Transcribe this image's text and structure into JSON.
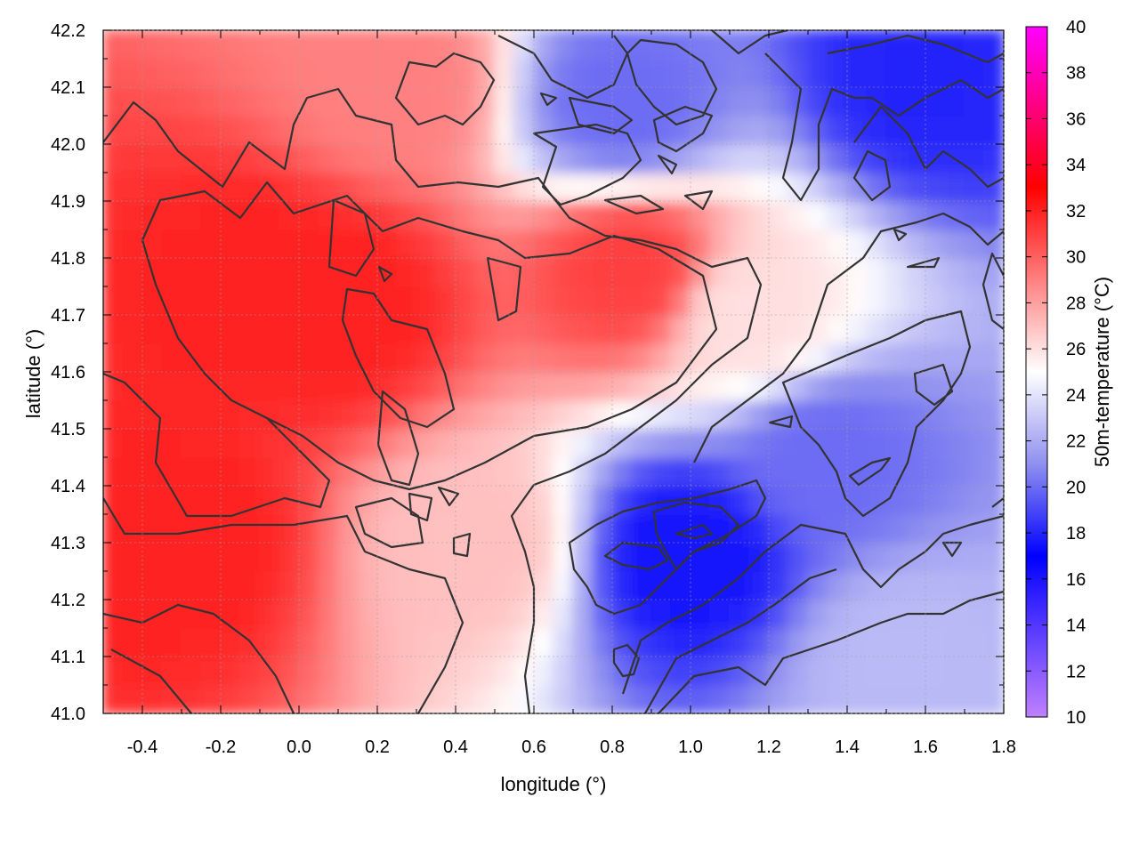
{
  "chart_data": {
    "type": "heatmap",
    "title": "",
    "xlabel": "longitude (°)",
    "ylabel": "latitude (°)",
    "colorbar_label": "50m-temperature (°C)",
    "xlim": [
      -0.5,
      1.8
    ],
    "ylim": [
      41.0,
      42.2
    ],
    "x_ticks": [
      "-0.4",
      "-0.2",
      "0.0",
      "0.2",
      "0.4",
      "0.6",
      "0.8",
      "1.0",
      "1.2",
      "1.4",
      "1.6",
      "1.8"
    ],
    "x_tick_values": [
      -0.4,
      -0.2,
      0.0,
      0.2,
      0.4,
      0.6,
      0.8,
      1.0,
      1.2,
      1.4,
      1.6,
      1.8
    ],
    "y_ticks": [
      "41.0",
      "41.1",
      "41.2",
      "41.3",
      "41.4",
      "41.5",
      "41.6",
      "41.7",
      "41.8",
      "41.9",
      "42.0",
      "42.1",
      "42.2"
    ],
    "y_tick_values": [
      41.0,
      41.1,
      41.2,
      41.3,
      41.4,
      41.5,
      41.6,
      41.7,
      41.8,
      41.9,
      42.0,
      42.1,
      42.2
    ],
    "colorbar_range": [
      10,
      40
    ],
    "colorbar_ticks": [
      "10",
      "12",
      "14",
      "16",
      "18",
      "20",
      "22",
      "24",
      "26",
      "28",
      "30",
      "32",
      "34",
      "36",
      "38",
      "40"
    ],
    "colorbar_tick_values": [
      10,
      12,
      14,
      16,
      18,
      20,
      22,
      24,
      26,
      28,
      30,
      32,
      34,
      36,
      38,
      40
    ],
    "colormap": [
      {
        "value": 10,
        "color": "#c080ff"
      },
      {
        "value": 17,
        "color": "#0000ff"
      },
      {
        "value": 21,
        "color": "#9090f0"
      },
      {
        "value": 25,
        "color": "#ffffff"
      },
      {
        "value": 29,
        "color": "#ff8080"
      },
      {
        "value": 33,
        "color": "#ff0000"
      },
      {
        "value": 40,
        "color": "#ff00ff"
      }
    ],
    "grid": true,
    "contours": true,
    "approx_field_samples": [
      {
        "lon": -0.3,
        "lat": 41.3,
        "temp": 32
      },
      {
        "lon": -0.1,
        "lat": 41.75,
        "temp": 32
      },
      {
        "lon": 0.1,
        "lat": 41.72,
        "temp": 32
      },
      {
        "lon": 0.85,
        "lat": 41.78,
        "temp": 31
      },
      {
        "lon": 0.25,
        "lat": 42.1,
        "temp": 29
      },
      {
        "lon": 0.45,
        "lat": 41.3,
        "temp": 27
      },
      {
        "lon": 1.15,
        "lat": 41.7,
        "temp": 26
      },
      {
        "lon": 1.0,
        "lat": 41.28,
        "temp": 17.5
      },
      {
        "lon": 1.35,
        "lat": 41.45,
        "temp": 20
      },
      {
        "lon": 1.6,
        "lat": 42.12,
        "temp": 18
      },
      {
        "lon": 0.83,
        "lat": 42.07,
        "temp": 20
      },
      {
        "lon": 1.55,
        "lat": 41.1,
        "temp": 22.5
      }
    ]
  }
}
